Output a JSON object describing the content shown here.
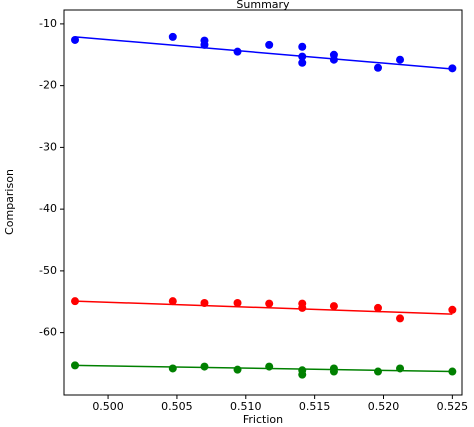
{
  "chart_data": {
    "type": "scatter",
    "title": "Summary",
    "x_label": "Friction",
    "y_label": "Comparison",
    "xlim": [
      0.4968,
      0.5257
    ],
    "ylim": [
      -70.1,
      -7.75
    ],
    "xticks": [
      {
        "value": 0.5,
        "label": "0.500"
      },
      {
        "value": 0.505,
        "label": "0.505"
      },
      {
        "value": 0.51,
        "label": "0.510"
      },
      {
        "value": 0.515,
        "label": "0.515"
      },
      {
        "value": 0.52,
        "label": "0.520"
      },
      {
        "value": 0.525,
        "label": "0.525"
      }
    ],
    "yticks": [
      -10,
      -20,
      -30,
      -40,
      -50,
      -60
    ],
    "series": [
      {
        "color": "#0000ff",
        "x": [
          0.4976,
          0.5047,
          0.507,
          0.507,
          0.5094,
          0.5117,
          0.5141,
          0.5141,
          0.5141,
          0.5164,
          0.5164,
          0.5196,
          0.5212,
          0.525
        ],
        "values": [
          -12.6,
          -12.1,
          -12.7,
          -13.4,
          -14.5,
          -13.4,
          -13.7,
          -15.3,
          -16.3,
          -15.0,
          -15.8,
          -17.1,
          -15.8,
          -17.2
        ],
        "fit_x": [
          0.4976,
          0.525
        ],
        "fit_values": [
          -12.1,
          -17.3
        ]
      },
      {
        "color": "#ff0000",
        "x": [
          0.4976,
          0.5047,
          0.507,
          0.5094,
          0.5117,
          0.5141,
          0.5141,
          0.5164,
          0.5196,
          0.5212,
          0.525
        ],
        "values": [
          -54.9,
          -54.9,
          -55.2,
          -55.2,
          -55.3,
          -55.3,
          -56.0,
          -55.7,
          -56.0,
          -57.7,
          -56.3
        ],
        "fit_x": [
          0.4976,
          0.525
        ],
        "fit_values": [
          -54.9,
          -57.0
        ]
      },
      {
        "color": "#008000",
        "x": [
          0.4976,
          0.5047,
          0.507,
          0.5094,
          0.5117,
          0.5141,
          0.5141,
          0.5164,
          0.5164,
          0.5196,
          0.5212,
          0.525
        ],
        "values": [
          -65.3,
          -65.8,
          -65.5,
          -66.0,
          -65.5,
          -66.1,
          -66.8,
          -65.8,
          -66.3,
          -66.3,
          -65.8,
          -66.3
        ],
        "fit_x": [
          0.4976,
          0.525
        ],
        "fit_values": [
          -65.3,
          -66.3
        ]
      }
    ]
  }
}
